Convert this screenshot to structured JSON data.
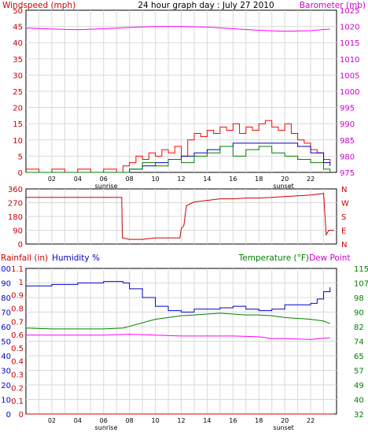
{
  "colors": {
    "panel_bg": "#ffffff",
    "frame": "#000000",
    "grid": "#d9d9d9",
    "wind": "#ff0000",
    "wind_avg": "#0000c0",
    "wind_dir": "#cc0000",
    "pressure": "#ff00ff",
    "rain": "#cc0000",
    "humidity": "#0000cc",
    "temperature": "#008000",
    "dewpoint": "#ff00ff",
    "text_red": "#cc0000",
    "text_magenta": "#cc00cc",
    "text_blue": "#0000cc",
    "text_green": "#008000",
    "text_black": "#000000"
  },
  "chart_data": [
    {
      "type": "line",
      "title": "24 hour graph day : July 27 2010",
      "left_label": "Windspeed (mph)",
      "right_label": "Barometer (mb)",
      "x_ticks": [
        "02",
        "04",
        "06",
        "08",
        "10",
        "12",
        "14",
        "16",
        "18",
        "20",
        "22"
      ],
      "x_annotations": [
        "sunrise",
        "sunset"
      ],
      "x_range_hours": [
        0,
        24
      ],
      "y_left_range": [
        0,
        50
      ],
      "y_left_ticks": [
        "0",
        "5",
        "10",
        "15",
        "20",
        "25",
        "30",
        "35",
        "40",
        "45",
        "50"
      ],
      "y_right_range": [
        975,
        1025
      ],
      "y_right_ticks": [
        "975",
        "980",
        "985",
        "990",
        "995",
        "1000",
        "1005",
        "1010",
        "1015",
        "1020",
        "1025"
      ],
      "grid": true,
      "series": [
        {
          "name": "Windspeed (mph)",
          "axis": "left",
          "x": [
            0,
            1,
            2,
            3,
            4,
            5,
            6,
            7,
            7.5,
            8,
            8.5,
            9,
            9.5,
            10,
            10.5,
            11,
            11.5,
            12,
            12.5,
            13,
            13.5,
            14,
            14.5,
            15,
            15.5,
            16,
            16.5,
            17,
            17.5,
            18,
            18.5,
            19,
            19.5,
            20,
            20.5,
            21,
            21.5,
            22,
            22.5,
            23,
            23.5
          ],
          "values": [
            1,
            0,
            1,
            0,
            1,
            0,
            1,
            0,
            2,
            3,
            5,
            4,
            6,
            5,
            7,
            6,
            8,
            5,
            10,
            12,
            11,
            13,
            12,
            14,
            13,
            15,
            12,
            14,
            13,
            15,
            16,
            14,
            13,
            15,
            12,
            10,
            9,
            7,
            6,
            4,
            3
          ]
        },
        {
          "name": "Average windspeed",
          "axis": "left",
          "x": [
            0,
            6,
            7,
            8,
            9,
            10,
            11,
            12,
            13,
            14,
            15,
            16,
            17,
            18,
            19,
            20,
            21,
            22,
            23,
            23.5
          ],
          "values": [
            0,
            0,
            0,
            1,
            2,
            3,
            4,
            5,
            6,
            7,
            8,
            9,
            9,
            9,
            9,
            9,
            8,
            6,
            3,
            2
          ]
        },
        {
          "name": "Wind gust",
          "axis": "left",
          "x": [
            0,
            7,
            8,
            9,
            10,
            11,
            12,
            13,
            14,
            15,
            16,
            17,
            18,
            19,
            20,
            21,
            22,
            23,
            23.5
          ],
          "values": [
            0,
            0,
            1,
            3,
            2,
            4,
            3,
            5,
            6,
            8,
            5,
            7,
            8,
            6,
            5,
            4,
            3,
            1,
            0
          ]
        },
        {
          "name": "Barometer (mb)",
          "axis": "right",
          "x": [
            0,
            2,
            4,
            6,
            8,
            10,
            12,
            14,
            16,
            18,
            20,
            22,
            23.5
          ],
          "values": [
            1019.5,
            1019.2,
            1019.0,
            1019.3,
            1019.7,
            1020.0,
            1020.0,
            1019.8,
            1019.3,
            1018.8,
            1018.5,
            1018.7,
            1019.2
          ]
        }
      ]
    },
    {
      "type": "line",
      "title": "",
      "x_range_hours": [
        0,
        24
      ],
      "y_left_range": [
        0,
        360
      ],
      "y_left_ticks": [
        "0",
        "90",
        "180",
        "270",
        "360"
      ],
      "y_right_labels": [
        "N",
        "W",
        "S",
        "E",
        "N"
      ],
      "grid": true,
      "series": [
        {
          "name": "Wind direction",
          "x": [
            0,
            7.4,
            7.45,
            8,
            9,
            10,
            11,
            11.9,
            12,
            12.2,
            12.4,
            13,
            14,
            15,
            16,
            17,
            18,
            19,
            20,
            21,
            22,
            23,
            23.2,
            23.4,
            23.8
          ],
          "values": [
            305,
            305,
            40,
            30,
            30,
            40,
            40,
            40,
            100,
            120,
            250,
            275,
            285,
            295,
            295,
            300,
            300,
            305,
            310,
            315,
            320,
            330,
            60,
            90,
            90
          ]
        }
      ]
    },
    {
      "type": "line",
      "title": "",
      "left_label_1": "Rainfall (in)",
      "left_label_2": "Humidity %",
      "right_label_1": "Temperature (°F)",
      "right_label_2": "Dew Point",
      "x_ticks": [
        "02",
        "04",
        "06",
        "08",
        "10",
        "12",
        "14",
        "16",
        "18",
        "20",
        "22"
      ],
      "x_annotations": [
        "sunrise",
        "sunset"
      ],
      "x_range_hours": [
        0,
        24
      ],
      "y_rain_ticks": [
        "0",
        "0.1",
        "0.2",
        "0.3",
        "0.4",
        "0.5",
        "0.6",
        "0.7",
        "0.8",
        "0.9",
        "1",
        "1.1"
      ],
      "y_humidity_ticks": [
        "0",
        "10",
        "20",
        "30",
        "40",
        "50",
        "60",
        "70",
        "80",
        "90",
        "100"
      ],
      "y_humidity_range": [
        0,
        100
      ],
      "y_temp_ticks": [
        "32",
        "40",
        "49",
        "57",
        "65",
        "74",
        "82",
        "90",
        "98",
        "107",
        "115"
      ],
      "y_temp_range": [
        32,
        115
      ],
      "grid": true,
      "series": [
        {
          "name": "Humidity %",
          "axis": "humidity",
          "x": [
            0,
            2,
            4,
            6,
            7,
            7.5,
            8,
            9,
            10,
            11,
            12,
            13,
            14,
            15,
            16,
            17,
            18,
            19,
            20,
            21,
            22,
            22.5,
            23,
            23.5
          ],
          "values": [
            88,
            89,
            90,
            91,
            91,
            90,
            86,
            80,
            74,
            71,
            70,
            72,
            72,
            73,
            74,
            72,
            71,
            72,
            75,
            75,
            76,
            79,
            84,
            87
          ]
        },
        {
          "name": "Temperature (°F)",
          "axis": "temperature",
          "x": [
            0,
            2,
            4,
            6,
            7.5,
            8,
            9,
            10,
            11,
            12,
            13,
            14,
            15,
            16,
            17,
            18,
            19,
            20,
            21,
            22,
            23,
            23.5
          ],
          "values": [
            81,
            80.5,
            80.5,
            80.5,
            81,
            82,
            84,
            86,
            87,
            88,
            88.5,
            89,
            89.5,
            89,
            88.5,
            88.5,
            88,
            87,
            86.5,
            86,
            85,
            83.5
          ]
        },
        {
          "name": "Dew Point",
          "axis": "temperature",
          "x": [
            0,
            2,
            4,
            6,
            8,
            10,
            12,
            14,
            16,
            18,
            19,
            20,
            22,
            23.5
          ],
          "values": [
            77,
            77,
            77,
            77,
            77.5,
            77,
            76.5,
            76.5,
            76.5,
            76,
            75,
            75,
            74.5,
            75.5
          ]
        },
        {
          "name": "Rainfall (in)",
          "axis": "humidity",
          "x": [
            0,
            23.8
          ],
          "values": [
            0,
            0
          ]
        }
      ]
    }
  ]
}
